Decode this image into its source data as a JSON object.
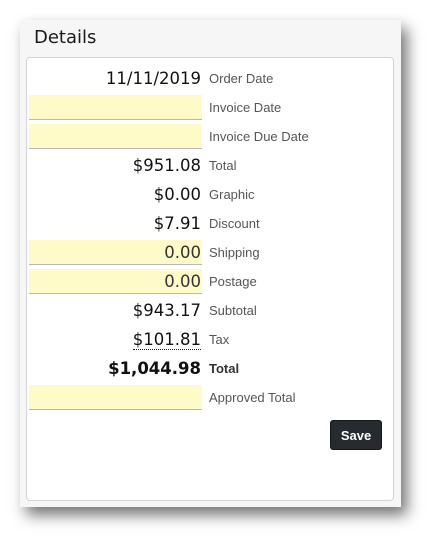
{
  "panel": {
    "title": "Details"
  },
  "fields": {
    "order_date": {
      "value": "11/11/2019",
      "label": "Order Date"
    },
    "invoice_date": {
      "value": "",
      "label": "Invoice Date"
    },
    "invoice_due_date": {
      "value": "",
      "label": "Invoice Due Date"
    },
    "total": {
      "value": "$951.08",
      "label": "Total"
    },
    "graphic": {
      "value": "$0.00",
      "label": "Graphic"
    },
    "discount": {
      "value": "$7.91",
      "label": "Discount"
    },
    "shipping": {
      "value": "0.00",
      "label": "Shipping"
    },
    "postage": {
      "value": "0.00",
      "label": "Postage"
    },
    "subtotal": {
      "value": "$943.17",
      "label": "Subtotal"
    },
    "tax": {
      "value": "$101.81",
      "label": "Tax"
    },
    "grand_total": {
      "value": "$1,044.98",
      "label": "Total"
    },
    "approved_total": {
      "value": "",
      "label": "Approved Total"
    }
  },
  "actions": {
    "save_label": "Save"
  },
  "colors": {
    "input_bg": "#fffbc9",
    "button_bg": "#262b2f"
  }
}
